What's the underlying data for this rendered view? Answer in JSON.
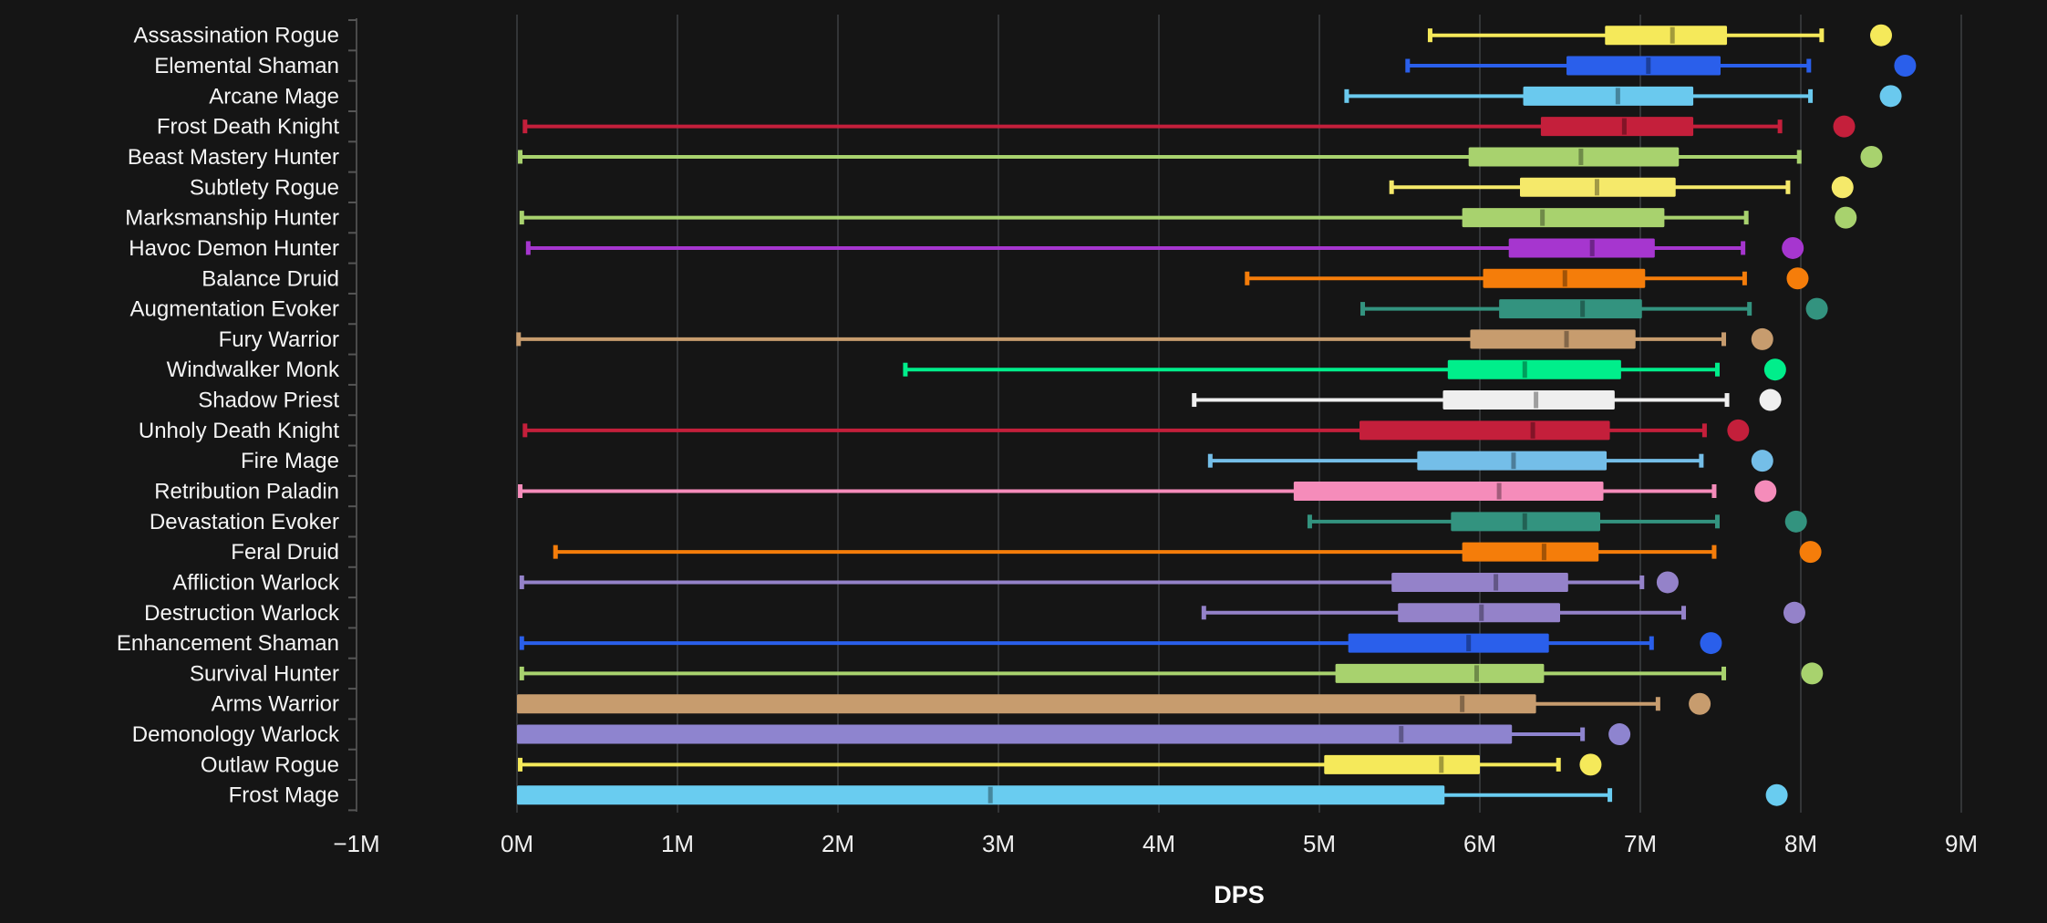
{
  "app": {
    "description": "Dark-themed horizontal box plot of DPS by class specialization"
  },
  "chart_data": {
    "type": "box",
    "orientation": "horizontal",
    "title": "",
    "xlabel": "DPS",
    "ylabel": "",
    "unit": "M (millions)",
    "xlim": [
      -1.0,
      9.53
    ],
    "grid": "vertical-only",
    "x_ticks": [
      {
        "label": "−1M",
        "value": -1
      },
      {
        "label": "0M",
        "value": 0
      },
      {
        "label": "1M",
        "value": 1
      },
      {
        "label": "2M",
        "value": 2
      },
      {
        "label": "3M",
        "value": 3
      },
      {
        "label": "4M",
        "value": 4
      },
      {
        "label": "5M",
        "value": 5
      },
      {
        "label": "6M",
        "value": 6
      },
      {
        "label": "7M",
        "value": 7
      },
      {
        "label": "8M",
        "value": 8
      },
      {
        "label": "9M",
        "value": 9
      }
    ],
    "rows": [
      {
        "label": "Assassination Rogue",
        "color": "#F5E95A",
        "min": 5.69,
        "q1": 6.78,
        "median": 7.2,
        "q3": 7.54,
        "max": 8.13,
        "point": 8.5
      },
      {
        "label": "Elemental Shaman",
        "color": "#2A5FEB",
        "min": 5.55,
        "q1": 6.54,
        "median": 7.05,
        "q3": 7.5,
        "max": 8.05,
        "point": 8.65
      },
      {
        "label": "Arcane Mage",
        "color": "#6AC9EE",
        "min": 5.17,
        "q1": 6.27,
        "median": 6.86,
        "q3": 7.33,
        "max": 8.06,
        "point": 8.56
      },
      {
        "label": "Frost Death Knight",
        "color": "#C41F3B",
        "min": 0.05,
        "q1": 6.38,
        "median": 6.9,
        "q3": 7.33,
        "max": 7.87,
        "point": 8.27
      },
      {
        "label": "Beast Mastery Hunter",
        "color": "#A8D26E",
        "min": 0.02,
        "q1": 5.93,
        "median": 6.63,
        "q3": 7.24,
        "max": 7.99,
        "point": 8.44
      },
      {
        "label": "Subtlety Rogue",
        "color": "#F5E96A",
        "min": 5.45,
        "q1": 6.25,
        "median": 6.73,
        "q3": 7.22,
        "max": 7.92,
        "point": 8.26
      },
      {
        "label": "Marksmanship Hunter",
        "color": "#A8D26E",
        "min": 0.03,
        "q1": 5.89,
        "median": 6.39,
        "q3": 7.15,
        "max": 7.66,
        "point": 8.28
      },
      {
        "label": "Havoc Demon Hunter",
        "color": "#A636CF",
        "min": 0.07,
        "q1": 6.18,
        "median": 6.7,
        "q3": 7.09,
        "max": 7.64,
        "point": 7.95
      },
      {
        "label": "Balance Druid",
        "color": "#F57D0A",
        "min": 4.55,
        "q1": 6.02,
        "median": 6.53,
        "q3": 7.03,
        "max": 7.65,
        "point": 7.98
      },
      {
        "label": "Augmentation Evoker",
        "color": "#33937F",
        "min": 5.27,
        "q1": 6.12,
        "median": 6.64,
        "q3": 7.01,
        "max": 7.68,
        "point": 8.1
      },
      {
        "label": "Fury Warrior",
        "color": "#C79C6E",
        "min": 0.01,
        "q1": 5.94,
        "median": 6.54,
        "q3": 6.97,
        "max": 7.52,
        "point": 7.76
      },
      {
        "label": "Windwalker Monk",
        "color": "#00EE8B",
        "min": 2.42,
        "q1": 5.8,
        "median": 6.28,
        "q3": 6.88,
        "max": 7.48,
        "point": 7.84
      },
      {
        "label": "Shadow Priest",
        "color": "#EFEFEF",
        "min": 4.22,
        "q1": 5.77,
        "median": 6.35,
        "q3": 6.84,
        "max": 7.54,
        "point": 7.81
      },
      {
        "label": "Unholy Death Knight",
        "color": "#C41F3B",
        "min": 0.05,
        "q1": 5.25,
        "median": 6.33,
        "q3": 6.81,
        "max": 7.4,
        "point": 7.61
      },
      {
        "label": "Fire Mage",
        "color": "#74BEE8",
        "min": 4.32,
        "q1": 5.61,
        "median": 6.21,
        "q3": 6.79,
        "max": 7.38,
        "point": 7.76
      },
      {
        "label": "Retribution Paladin",
        "color": "#F58CBA",
        "min": 0.02,
        "q1": 4.84,
        "median": 6.12,
        "q3": 6.77,
        "max": 7.46,
        "point": 7.78
      },
      {
        "label": "Devastation Evoker",
        "color": "#33937F",
        "min": 4.94,
        "q1": 5.82,
        "median": 6.28,
        "q3": 6.75,
        "max": 7.48,
        "point": 7.97
      },
      {
        "label": "Feral Druid",
        "color": "#F57D0A",
        "min": 0.24,
        "q1": 5.89,
        "median": 6.4,
        "q3": 6.74,
        "max": 7.46,
        "point": 8.06
      },
      {
        "label": "Affliction Warlock",
        "color": "#9482C9",
        "min": 0.03,
        "q1": 5.45,
        "median": 6.1,
        "q3": 6.55,
        "max": 7.01,
        "point": 7.17
      },
      {
        "label": "Destruction Warlock",
        "color": "#9482C9",
        "min": 4.28,
        "q1": 5.49,
        "median": 6.01,
        "q3": 6.5,
        "max": 7.27,
        "point": 7.96
      },
      {
        "label": "Enhancement Shaman",
        "color": "#2A5FEB",
        "min": 0.03,
        "q1": 5.18,
        "median": 5.93,
        "q3": 6.43,
        "max": 7.07,
        "point": 7.44
      },
      {
        "label": "Survival Hunter",
        "color": "#A8D26E",
        "min": 0.03,
        "q1": 5.1,
        "median": 5.98,
        "q3": 6.4,
        "max": 7.52,
        "point": 8.07
      },
      {
        "label": "Arms Warrior",
        "color": "#C79C6E",
        "min": 0.0,
        "q1": 0.0,
        "median": 5.89,
        "q3": 6.35,
        "max": 7.11,
        "point": 7.37
      },
      {
        "label": "Demonology Warlock",
        "color": "#8E84CF",
        "min": 0.0,
        "q1": 0.0,
        "median": 5.51,
        "q3": 6.2,
        "max": 6.64,
        "point": 6.87
      },
      {
        "label": "Outlaw Rogue",
        "color": "#F5E95A",
        "min": 0.02,
        "q1": 5.03,
        "median": 5.76,
        "q3": 6.0,
        "max": 6.49,
        "point": 6.69
      },
      {
        "label": "Frost Mage",
        "color": "#69CCF0",
        "min": 0.0,
        "q1": 0.0,
        "median": 2.95,
        "q3": 5.78,
        "max": 6.81,
        "point": 7.85
      }
    ],
    "legend": "none"
  },
  "style": {
    "background": "#151515",
    "gridline_color": "#333537",
    "axis_line_color": "#4a4a4a",
    "tick_color": "#555555",
    "text_color": "#f5f5f5"
  }
}
